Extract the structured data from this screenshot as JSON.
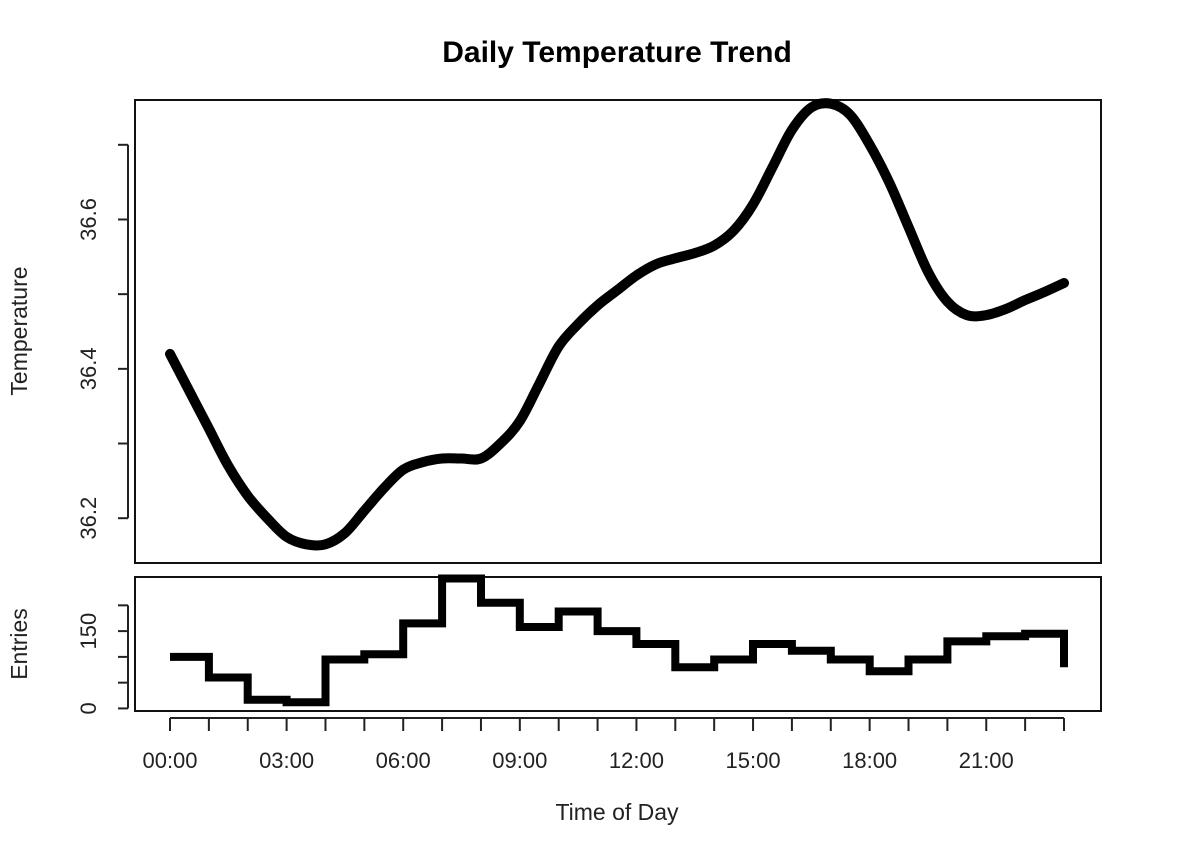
{
  "chart_data": {
    "title": "Daily Temperature Trend",
    "xlabel": "Time of Day",
    "x_range_hours": [
      0,
      23
    ],
    "x_ticks_labeled": [
      "00:00",
      "03:00",
      "06:00",
      "09:00",
      "12:00",
      "15:00",
      "18:00",
      "21:00"
    ],
    "charts": [
      {
        "type": "line",
        "ylabel": "Temperature",
        "ylim": [
          36.14,
          36.76
        ],
        "y_ticks": [
          36.2,
          36.3,
          36.4,
          36.5,
          36.6,
          36.7
        ],
        "y_tick_labels": [
          "36.2",
          "",
          "36.4",
          "",
          "36.6",
          ""
        ],
        "grid": false,
        "series": [
          {
            "x_hours": [
              0,
              0.5,
              1,
              1.5,
              2,
              2.5,
              3,
              3.5,
              4,
              4.5,
              5,
              5.5,
              6,
              6.5,
              7,
              7.5,
              8,
              8.5,
              9,
              9.5,
              10,
              10.5,
              11,
              11.5,
              12,
              12.5,
              13,
              13.5,
              14,
              14.5,
              15,
              15.5,
              16,
              16.5,
              17,
              17.5,
              18,
              18.5,
              19,
              19.5,
              20,
              20.5,
              21,
              21.5,
              22,
              22.5,
              23
            ],
            "values": [
              36.42,
              36.37,
              36.32,
              36.27,
              36.23,
              36.2,
              36.175,
              36.165,
              36.165,
              36.18,
              36.21,
              36.24,
              36.265,
              36.275,
              36.28,
              36.28,
              36.28,
              36.3,
              36.33,
              36.38,
              36.43,
              36.46,
              36.485,
              36.505,
              36.525,
              36.54,
              36.548,
              36.555,
              36.565,
              36.585,
              36.62,
              36.67,
              36.72,
              36.75,
              36.755,
              36.74,
              36.7,
              36.65,
              36.59,
              36.53,
              36.49,
              36.472,
              36.472,
              36.48,
              36.492,
              36.503,
              36.515
            ]
          }
        ]
      },
      {
        "type": "step",
        "ylabel": "Entries",
        "ylim": [
          -5,
          255
        ],
        "y_ticks": [
          0,
          50,
          100,
          150,
          200
        ],
        "y_tick_labels": [
          "0",
          "",
          "",
          "150",
          ""
        ],
        "grid": false,
        "series": [
          {
            "x_hours": [
              0,
              1,
              2,
              3,
              4,
              5,
              6,
              7,
              8,
              9,
              10,
              11,
              12,
              13,
              14,
              15,
              16,
              17,
              18,
              19,
              20,
              21,
              22
            ],
            "values": [
              100,
              60,
              17,
              12,
              95,
              105,
              165,
              252,
              205,
              158,
              188,
              150,
              125,
              80,
              95,
              125,
              112,
              95,
              72,
              95,
              130,
              140,
              145
            ]
          }
        ],
        "final_value": 80
      }
    ]
  }
}
